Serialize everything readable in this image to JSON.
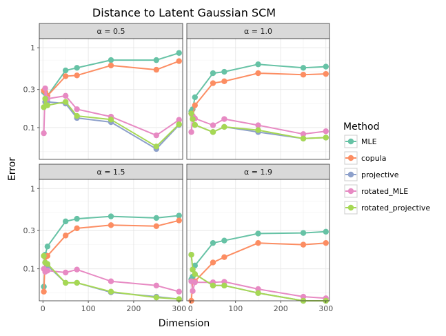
{
  "chart_data": {
    "type": "line",
    "title": "Distance to Latent Gaussian SCM",
    "xlabel": "Dimension",
    "ylabel": "Error",
    "y_scale": "log",
    "xlim": [
      -8,
      308
    ],
    "ylim": [
      0.04,
      1.3
    ],
    "x_ticks": [
      0,
      100,
      200,
      300
    ],
    "y_ticks": [
      0.1,
      0.3,
      1
    ],
    "y_tick_labels": [
      "0.1",
      "0.3",
      "1"
    ],
    "grid": true,
    "legend": {
      "title": "Method",
      "position": "right",
      "entries": [
        "MLE",
        "copula",
        "projective",
        "rotated_MLE",
        "rotated_projective"
      ]
    },
    "colors": {
      "MLE": "#66c2a5",
      "copula": "#fc8d62",
      "projective": "#8da0cb",
      "rotated_MLE": "#e78ac3",
      "rotated_projective": "#a6d854"
    },
    "x": [
      2,
      5,
      10,
      50,
      75,
      150,
      250,
      300
    ],
    "panels": [
      {
        "label": "α = 0.5",
        "series": [
          {
            "name": "MLE",
            "values": [
              0.28,
              0.27,
              0.25,
              0.52,
              0.56,
              0.7,
              0.7,
              0.86
            ]
          },
          {
            "name": "copula",
            "values": [
              0.29,
              0.28,
              0.25,
              0.44,
              0.45,
              0.6,
              0.53,
              0.68
            ]
          },
          {
            "name": "projective",
            "values": [
              0.18,
              0.21,
              0.21,
              0.2,
              0.132,
              0.117,
              0.054,
              0.108
            ]
          },
          {
            "name": "rotated_MLE",
            "values": [
              0.085,
              0.31,
              0.23,
              0.25,
              0.17,
              0.137,
              0.08,
              0.125
            ]
          },
          {
            "name": "rotated_projective",
            "values": [
              0.18,
              0.23,
              0.19,
              0.21,
              0.14,
              0.126,
              0.058,
              0.11
            ]
          }
        ]
      },
      {
        "label": "α = 1.0",
        "series": [
          {
            "name": "MLE",
            "values": [
              0.16,
              0.17,
              0.24,
              0.48,
              0.5,
              0.62,
              0.56,
              0.58
            ]
          },
          {
            "name": "copula",
            "values": [
              0.15,
              0.14,
              0.19,
              0.36,
              0.38,
              0.48,
              0.46,
              0.47
            ]
          },
          {
            "name": "projective",
            "values": [
              0.15,
              0.128,
              0.108,
              0.088,
              0.102,
              0.088,
              0.073,
              0.075
            ]
          },
          {
            "name": "rotated_MLE",
            "values": [
              0.088,
              0.14,
              0.13,
              0.107,
              0.128,
              0.107,
              0.083,
              0.09
            ]
          },
          {
            "name": "rotated_projective",
            "values": [
              0.15,
              0.128,
              0.108,
              0.088,
              0.102,
              0.093,
              0.073,
              0.075
            ]
          }
        ]
      },
      {
        "label": "α = 1.5",
        "series": [
          {
            "name": "MLE",
            "values": [
              0.06,
              0.15,
              0.19,
              0.39,
              0.42,
              0.45,
              0.43,
              0.46
            ]
          },
          {
            "name": "copula",
            "values": [
              0.052,
              0.14,
              0.145,
              0.26,
              0.32,
              0.35,
              0.34,
              0.4
            ]
          },
          {
            "name": "projective",
            "values": [
              0.145,
              0.12,
              0.11,
              0.067,
              0.067,
              0.051,
              0.045,
              0.042
            ]
          },
          {
            "name": "rotated_MLE",
            "values": [
              0.1,
              0.092,
              0.095,
              0.09,
              0.098,
              0.07,
              0.062,
              0.052
            ]
          },
          {
            "name": "rotated_projective",
            "values": [
              0.145,
              0.12,
              0.115,
              0.067,
              0.067,
              0.052,
              0.044,
              0.042
            ]
          }
        ]
      },
      {
        "label": "α = 1.9",
        "series": [
          {
            "name": "MLE",
            "values": [
              0.074,
              0.08,
              0.11,
              0.21,
              0.225,
              0.275,
              0.28,
              0.29
            ]
          },
          {
            "name": "copula",
            "values": [
              0.04,
              0.069,
              0.07,
              0.12,
              0.14,
              0.21,
              0.2,
              0.21
            ]
          },
          {
            "name": "projective",
            "values": [
              0.15,
              0.098,
              0.086,
              0.062,
              0.062,
              0.05,
              0.04,
              0.04
            ]
          },
          {
            "name": "rotated_MLE",
            "values": [
              0.07,
              0.053,
              0.068,
              0.068,
              0.069,
              0.056,
              0.045,
              0.043
            ]
          },
          {
            "name": "rotated_projective",
            "values": [
              0.15,
              0.098,
              0.086,
              0.062,
              0.062,
              0.05,
              0.04,
              0.04
            ]
          }
        ]
      }
    ]
  }
}
